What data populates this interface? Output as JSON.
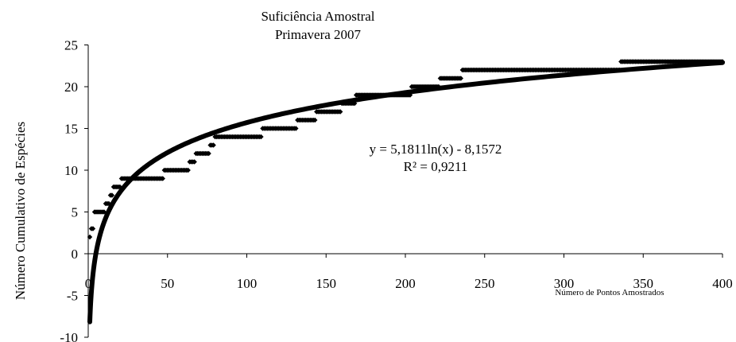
{
  "chart_data": {
    "type": "scatter",
    "title": "Suficiência Amostral",
    "subtitle": "Primavera 2007",
    "xlabel": "Número de Pontos Amostrados",
    "ylabel": "Número Cumulativo de Espécies",
    "xlim": [
      0,
      400
    ],
    "ylim": [
      -10,
      25
    ],
    "x_ticks": [
      "0",
      "50",
      "100",
      "150",
      "200",
      "250",
      "300",
      "350",
      "400"
    ],
    "y_ticks": [
      "-10",
      "-5",
      "0",
      "5",
      "10",
      "15",
      "20",
      "25"
    ],
    "grid": false,
    "legend": "none",
    "point_color": "#000000",
    "trendline": {
      "type": "logarithmic",
      "a": 5.1811,
      "b": -8.1572,
      "equation_label": "y = 5,1811ln(x) - 8,1572",
      "r2_label": "R² = 0,9211"
    },
    "step_series": [
      {
        "x_start": 1,
        "x_end": 1,
        "y": 2
      },
      {
        "x_start": 2,
        "x_end": 3,
        "y": 3
      },
      {
        "x_start": 4,
        "x_end": 10,
        "y": 5
      },
      {
        "x_start": 11,
        "x_end": 13,
        "y": 6
      },
      {
        "x_start": 14,
        "x_end": 15,
        "y": 7
      },
      {
        "x_start": 16,
        "x_end": 20,
        "y": 8
      },
      {
        "x_start": 21,
        "x_end": 47,
        "y": 9
      },
      {
        "x_start": 48,
        "x_end": 63,
        "y": 10
      },
      {
        "x_start": 64,
        "x_end": 67,
        "y": 11
      },
      {
        "x_start": 68,
        "x_end": 76,
        "y": 12
      },
      {
        "x_start": 77,
        "x_end": 79,
        "y": 13
      },
      {
        "x_start": 80,
        "x_end": 109,
        "y": 14
      },
      {
        "x_start": 110,
        "x_end": 131,
        "y": 15
      },
      {
        "x_start": 132,
        "x_end": 143,
        "y": 16
      },
      {
        "x_start": 144,
        "x_end": 159,
        "y": 17
      },
      {
        "x_start": 160,
        "x_end": 168,
        "y": 18
      },
      {
        "x_start": 169,
        "x_end": 203,
        "y": 19
      },
      {
        "x_start": 204,
        "x_end": 221,
        "y": 20
      },
      {
        "x_start": 222,
        "x_end": 235,
        "y": 21
      },
      {
        "x_start": 236,
        "x_end": 335,
        "y": 22
      },
      {
        "x_start": 336,
        "x_end": 400,
        "y": 23
      }
    ]
  }
}
